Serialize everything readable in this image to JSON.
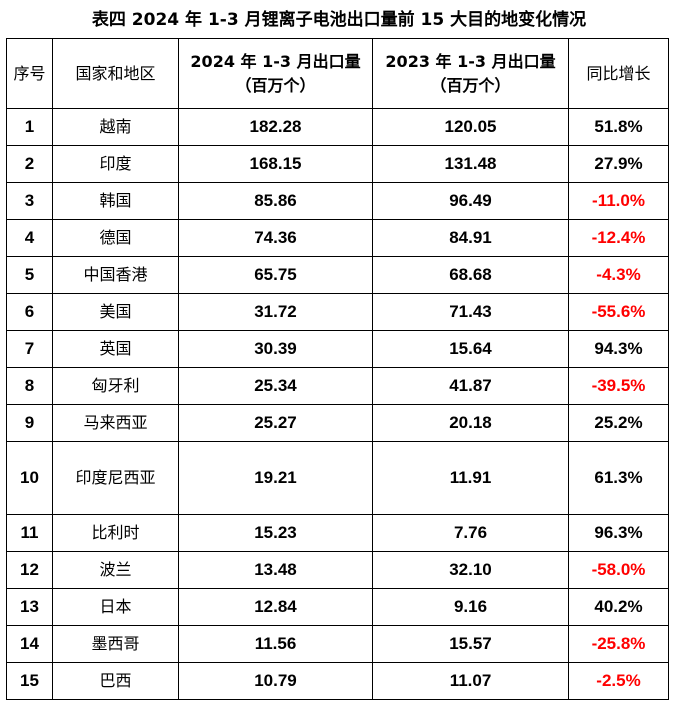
{
  "title": "表四    2024 年 1-3 月锂离子电池出口量前 15 大目的地变化情况",
  "headers": {
    "seq": "序号",
    "region": "国家和地区",
    "q2024": "2024 年 1-3 月出口量（百万个）",
    "q2023": "2023 年 1-3 月出口量（百万个）",
    "yoy": "同比增长"
  },
  "rows": [
    {
      "seq": "1",
      "region": "越南",
      "v2024": "182.28",
      "v2023": "120.05",
      "yoy": "51.8%",
      "neg": false
    },
    {
      "seq": "2",
      "region": "印度",
      "v2024": "168.15",
      "v2023": "131.48",
      "yoy": "27.9%",
      "neg": false
    },
    {
      "seq": "3",
      "region": "韩国",
      "v2024": "85.86",
      "v2023": "96.49",
      "yoy": "-11.0%",
      "neg": true
    },
    {
      "seq": "4",
      "region": "德国",
      "v2024": "74.36",
      "v2023": "84.91",
      "yoy": "-12.4%",
      "neg": true
    },
    {
      "seq": "5",
      "region": "中国香港",
      "v2024": "65.75",
      "v2023": "68.68",
      "yoy": "-4.3%",
      "neg": true
    },
    {
      "seq": "6",
      "region": "美国",
      "v2024": "31.72",
      "v2023": "71.43",
      "yoy": "-55.6%",
      "neg": true
    },
    {
      "seq": "7",
      "region": "英国",
      "v2024": "30.39",
      "v2023": "15.64",
      "yoy": "94.3%",
      "neg": false
    },
    {
      "seq": "8",
      "region": "匈牙利",
      "v2024": "25.34",
      "v2023": "41.87",
      "yoy": "-39.5%",
      "neg": true
    },
    {
      "seq": "9",
      "region": "马来西亚",
      "v2024": "25.27",
      "v2023": "20.18",
      "yoy": "25.2%",
      "neg": false
    },
    {
      "seq": "10",
      "region": "印度尼西亚",
      "v2024": "19.21",
      "v2023": "11.91",
      "yoy": "61.3%",
      "neg": false
    },
    {
      "seq": "11",
      "region": "比利时",
      "v2024": "15.23",
      "v2023": "7.76",
      "yoy": "96.3%",
      "neg": false
    },
    {
      "seq": "12",
      "region": "波兰",
      "v2024": "13.48",
      "v2023": "32.10",
      "yoy": "-58.0%",
      "neg": true
    },
    {
      "seq": "13",
      "region": "日本",
      "v2024": "12.84",
      "v2023": "9.16",
      "yoy": "40.2%",
      "neg": false
    },
    {
      "seq": "14",
      "region": "墨西哥",
      "v2024": "11.56",
      "v2023": "15.57",
      "yoy": "-25.8%",
      "neg": true
    },
    {
      "seq": "15",
      "region": "巴西",
      "v2024": "10.79",
      "v2023": "11.07",
      "yoy": "-2.5%",
      "neg": true
    }
  ],
  "colors": {
    "negative": "#ff0000",
    "text": "#000000"
  }
}
